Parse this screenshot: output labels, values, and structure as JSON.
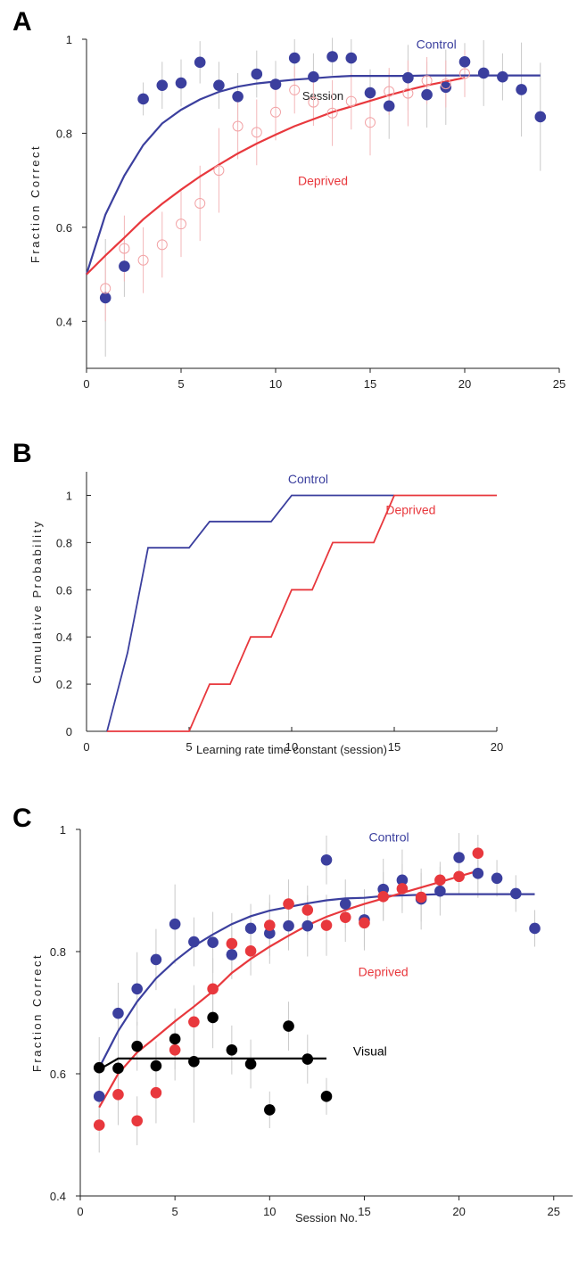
{
  "colors": {
    "control": "#3b3f9e",
    "deprived": "#e8383d",
    "deprived_light": "#f2a3a6",
    "visual": "#000000",
    "errorbar": "#c9c9c9",
    "deprived_errorbar": "#f3b7b9"
  },
  "chart_data": [
    {
      "panel": "A",
      "type": "scatter",
      "xlabel": "Session",
      "ylabel": "Fraction Correct",
      "xlim": [
        0,
        25
      ],
      "ylim": [
        0.3,
        1.0
      ],
      "xticks": [
        0,
        5,
        10,
        15,
        20,
        25
      ],
      "yticks": [
        0.4,
        0.6,
        0.8,
        1
      ],
      "ytick_labels": [
        "0.4",
        "0.6",
        "0.8",
        "1"
      ],
      "grid": false,
      "annotations": [
        {
          "text": "Control",
          "color_key": "control",
          "x": 18.5,
          "y": 0.98
        },
        {
          "text": "Deprived",
          "color_key": "deprived",
          "x": 12.5,
          "y": 0.69
        }
      ],
      "series": [
        {
          "name": "Control",
          "style": "filled",
          "color_key": "control",
          "x": [
            1,
            2,
            3,
            4,
            5,
            6,
            7,
            8,
            9,
            10,
            11,
            12,
            13,
            14,
            15,
            16,
            17,
            18,
            19,
            20,
            21,
            22,
            23,
            24
          ],
          "y": [
            0.45,
            0.517,
            0.873,
            0.902,
            0.907,
            0.951,
            0.902,
            0.878,
            0.926,
            0.904,
            0.96,
            0.92,
            0.963,
            0.96,
            0.886,
            0.858,
            0.918,
            0.882,
            0.898,
            0.952,
            0.928,
            0.92,
            0.893,
            0.835
          ],
          "err": [
            0.125,
            0.065,
            0.035,
            0.05,
            0.05,
            0.045,
            0.05,
            0.05,
            0.05,
            0.05,
            0.04,
            0.05,
            0.04,
            0.04,
            0.05,
            0.07,
            0.07,
            0.07,
            0.08,
            0.04,
            0.07,
            0.05,
            0.1,
            0.115
          ]
        },
        {
          "name": "Deprived",
          "style": "open",
          "color_key": "deprived_light",
          "x": [
            1,
            2,
            3,
            4,
            5,
            6,
            7,
            8,
            9,
            10,
            11,
            12,
            13,
            14,
            15,
            16,
            17,
            18,
            19,
            20
          ],
          "y": [
            0.47,
            0.555,
            0.53,
            0.563,
            0.607,
            0.651,
            0.721,
            0.815,
            0.802,
            0.845,
            0.892,
            0.866,
            0.843,
            0.868,
            0.823,
            0.889,
            0.885,
            0.912,
            0.905,
            0.927
          ],
          "err": [
            0.07,
            0.07,
            0.07,
            0.07,
            0.07,
            0.08,
            0.09,
            0.07,
            0.07,
            0.06,
            0.05,
            0.05,
            0.07,
            0.06,
            0.07,
            0.05,
            0.07,
            0.05,
            0.05,
            0.05
          ]
        }
      ],
      "curves": [
        {
          "name": "Control fit",
          "color_key": "control",
          "x": [
            0,
            1,
            2,
            3,
            4,
            5,
            6,
            7,
            8,
            9,
            10,
            11,
            12,
            13,
            14,
            15,
            16,
            17,
            18,
            19,
            20,
            21,
            22,
            23,
            24
          ],
          "y": [
            0.5,
            0.627,
            0.71,
            0.775,
            0.821,
            0.85,
            0.872,
            0.888,
            0.899,
            0.906,
            0.91,
            0.914,
            0.917,
            0.92,
            0.922,
            0.922,
            0.922,
            0.922,
            0.923,
            0.923,
            0.923,
            0.923,
            0.923,
            0.923,
            0.923
          ]
        },
        {
          "name": "Deprived fit",
          "color_key": "deprived",
          "x": [
            0,
            1,
            2,
            3,
            4,
            5,
            6,
            7,
            8,
            9,
            10,
            11,
            12,
            13,
            14,
            15,
            16,
            17,
            18,
            19,
            20
          ],
          "y": [
            0.5,
            0.54,
            0.578,
            0.617,
            0.65,
            0.68,
            0.708,
            0.733,
            0.757,
            0.778,
            0.797,
            0.815,
            0.83,
            0.845,
            0.857,
            0.869,
            0.881,
            0.892,
            0.902,
            0.91,
            0.918
          ]
        }
      ]
    },
    {
      "panel": "B",
      "type": "line",
      "xlabel": "Learning rate time constant (session)",
      "ylabel": "Cumulative Probability",
      "xlim": [
        0,
        20
      ],
      "ylim": [
        0,
        1.1
      ],
      "xticks": [
        0,
        5,
        10,
        15,
        20
      ],
      "yticks": [
        0,
        0.2,
        0.4,
        0.6,
        0.8,
        1
      ],
      "ytick_labels": [
        "0",
        "0.2",
        "0.4",
        "0.6",
        "0.8",
        "1"
      ],
      "grid": false,
      "annotations": [
        {
          "text": "Control",
          "color_key": "control",
          "x": 10.8,
          "y": 1.05
        },
        {
          "text": "Deprived",
          "color_key": "deprived",
          "x": 15.8,
          "y": 0.92
        }
      ],
      "series": [
        {
          "name": "Control",
          "color_key": "control",
          "x": [
            1,
            2,
            3,
            5,
            6,
            9,
            10,
            15
          ],
          "y": [
            0,
            0.333,
            0.778,
            0.778,
            0.889,
            0.889,
            1,
            1
          ]
        },
        {
          "name": "Deprived",
          "color_key": "deprived",
          "x": [
            1,
            5,
            6,
            7,
            8,
            9,
            10,
            11,
            12,
            14,
            15,
            20
          ],
          "y": [
            0,
            0,
            0.2,
            0.2,
            0.4,
            0.4,
            0.6,
            0.6,
            0.8,
            0.8,
            1,
            1
          ]
        }
      ]
    },
    {
      "panel": "C",
      "type": "scatter",
      "xlabel": "Session No.",
      "ylabel": "Fraction Correct",
      "xlim": [
        0,
        26
      ],
      "ylim": [
        0.4,
        1.0
      ],
      "xticks": [
        0,
        5,
        10,
        15,
        20,
        25
      ],
      "yticks": [
        0.4,
        0.6,
        0.8,
        1
      ],
      "ytick_labels": [
        "0.4",
        "0.6",
        "0.8",
        "1"
      ],
      "grid": false,
      "annotations": [
        {
          "text": "Control",
          "color_key": "control",
          "x": 16.3,
          "y": 0.98
        },
        {
          "text": "Deprived",
          "color_key": "deprived",
          "x": 16,
          "y": 0.76
        },
        {
          "text": "Visual",
          "color_key": "visual",
          "x": 15.3,
          "y": 0.63
        }
      ],
      "series": [
        {
          "name": "Control",
          "style": "filled",
          "color_key": "control",
          "x": [
            1,
            2,
            3,
            4,
            5,
            6,
            7,
            8,
            9,
            10,
            11,
            12,
            13,
            14,
            15,
            16,
            17,
            18,
            19,
            20,
            21,
            22,
            23,
            24
          ],
          "y": [
            0.563,
            0.699,
            0.739,
            0.787,
            0.845,
            0.816,
            0.815,
            0.795,
            0.838,
            0.83,
            0.842,
            0.842,
            0.95,
            0.878,
            0.852,
            0.902,
            0.917,
            0.886,
            0.899,
            0.954,
            0.928,
            0.92,
            0.895,
            0.838
          ],
          "err": [
            0.04,
            0.05,
            0.06,
            0.05,
            0.065,
            0.04,
            0.05,
            0.04,
            0.04,
            0.05,
            0.04,
            0.05,
            0.04,
            0.04,
            0.05,
            0.05,
            0.05,
            0.05,
            0.04,
            0.04,
            0.04,
            0.03,
            0.03,
            0.03
          ]
        },
        {
          "name": "Deprived",
          "style": "filled",
          "color_key": "deprived",
          "x": [
            1,
            2,
            3,
            4,
            5,
            6,
            7,
            8,
            9,
            10,
            11,
            12,
            13,
            14,
            15,
            16,
            17,
            18,
            19,
            20,
            21
          ],
          "y": [
            0.516,
            0.566,
            0.523,
            0.569,
            0.639,
            0.685,
            0.739,
            0.813,
            0.801,
            0.843,
            0.878,
            0.868,
            0.843,
            0.856,
            0.847,
            0.89,
            0.903,
            0.889,
            0.917,
            0.923,
            0.961
          ],
          "err": [
            0.045,
            0.05,
            0.04,
            0.05,
            0.05,
            0.06,
            0.05,
            0.05,
            0.04,
            0.05,
            0.04,
            0.04,
            0.05,
            0.04,
            0.04,
            0.04,
            0.04,
            0.04,
            0.03,
            0.03,
            0.03
          ]
        },
        {
          "name": "Visual",
          "style": "filled",
          "color_key": "visual",
          "x": [
            1,
            2,
            3,
            4,
            5,
            6,
            7,
            8,
            9,
            10,
            11,
            12,
            13
          ],
          "y": [
            0.61,
            0.609,
            0.645,
            0.613,
            0.657,
            0.62,
            0.692,
            0.639,
            0.616,
            0.541,
            0.678,
            0.624,
            0.563
          ],
          "err": [
            0.05,
            0.04,
            0.04,
            0.04,
            0.05,
            0.1,
            0.05,
            0.04,
            0.04,
            0.03,
            0.04,
            0.04,
            0.03
          ]
        }
      ],
      "curves": [
        {
          "name": "Control fit",
          "color_key": "control",
          "x": [
            1,
            2,
            3,
            4,
            5,
            6,
            7,
            8,
            9,
            10,
            11,
            12,
            13,
            14,
            15,
            16,
            17,
            18,
            19,
            20,
            21,
            22,
            23,
            24
          ],
          "y": [
            0.61,
            0.67,
            0.718,
            0.756,
            0.785,
            0.809,
            0.828,
            0.845,
            0.858,
            0.867,
            0.873,
            0.879,
            0.884,
            0.887,
            0.888,
            0.891,
            0.892,
            0.893,
            0.894,
            0.894,
            0.894,
            0.894,
            0.894,
            0.894
          ]
        },
        {
          "name": "Deprived fit",
          "color_key": "deprived",
          "x": [
            1,
            2,
            3,
            4,
            5,
            6,
            7,
            8,
            9,
            10,
            11,
            12,
            13,
            14,
            15,
            16,
            17,
            18,
            19,
            20,
            21
          ],
          "y": [
            0.545,
            0.6,
            0.635,
            0.66,
            0.686,
            0.71,
            0.735,
            0.765,
            0.788,
            0.808,
            0.826,
            0.843,
            0.857,
            0.868,
            0.878,
            0.887,
            0.896,
            0.905,
            0.914,
            0.923,
            0.932
          ]
        },
        {
          "name": "Visual fit",
          "color_key": "visual",
          "x": [
            1,
            2,
            3,
            4,
            5,
            6,
            7,
            8,
            9,
            10,
            11,
            12,
            13
          ],
          "y": [
            0.607,
            0.625,
            0.625,
            0.625,
            0.625,
            0.625,
            0.625,
            0.625,
            0.625,
            0.625,
            0.625,
            0.625,
            0.625
          ]
        }
      ]
    }
  ]
}
